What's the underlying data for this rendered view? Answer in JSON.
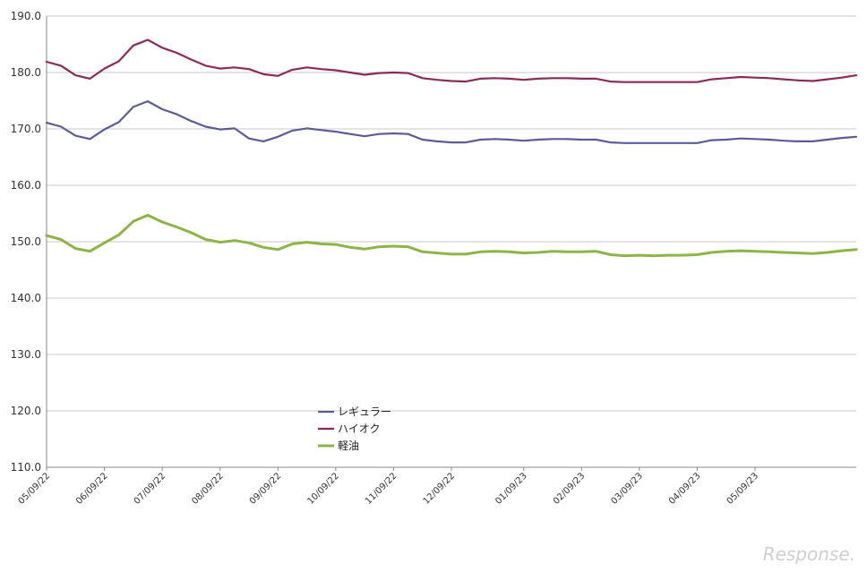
{
  "watermark": "Response.",
  "colors": {
    "regular": "#5b5b9b",
    "high_octane": "#8b2a5a",
    "diesel": "#8db545",
    "grid": "#c8c8c8",
    "axis": "#888888"
  },
  "chart_data": {
    "type": "line",
    "title": "",
    "xlabel": "",
    "ylabel": "",
    "ylim": [
      110,
      190
    ],
    "y_ticks": [
      "110.0",
      "120.0",
      "130.0",
      "140.0",
      "150.0",
      "160.0",
      "170.0",
      "180.0",
      "190.0"
    ],
    "x_ticks": [
      "05/09/22",
      "06/09/22",
      "07/09/22",
      "08/09/22",
      "09/09/22",
      "10/09/22",
      "11/09/22",
      "12/09/22",
      "01/09/23",
      "02/09/23",
      "03/09/23",
      "04/09/23",
      "05/09/23"
    ],
    "x_tick_index": [
      0,
      4,
      8,
      12,
      16,
      20,
      24,
      28,
      33,
      37,
      41,
      45,
      49
    ],
    "grid": "horizontal",
    "legend_position": "center-bottom",
    "series": [
      {
        "name": "レギュラー",
        "color_key": "regular",
        "values": [
          171.1,
          170.4,
          168.8,
          168.2,
          169.9,
          171.2,
          173.9,
          174.9,
          173.5,
          172.6,
          171.4,
          170.4,
          169.9,
          170.1,
          168.3,
          167.8,
          168.6,
          169.7,
          170.1,
          169.8,
          169.5,
          169.1,
          168.7,
          169.1,
          169.2,
          169.1,
          168.1,
          167.8,
          167.6,
          167.6,
          168.1,
          168.2,
          168.1,
          167.9,
          168.1,
          168.2,
          168.2,
          168.1,
          168.1,
          167.6,
          167.5,
          167.5,
          167.5,
          167.5,
          167.5,
          167.5,
          168.0,
          168.1,
          168.3,
          168.2,
          168.1,
          167.9,
          167.8,
          167.8,
          168.1,
          168.4,
          168.6
        ]
      },
      {
        "name": "ハイオク",
        "color_key": "high_octane",
        "values": [
          181.9,
          181.2,
          179.5,
          178.9,
          180.7,
          182.0,
          184.8,
          185.8,
          184.4,
          183.5,
          182.3,
          181.2,
          180.7,
          180.9,
          180.6,
          179.7,
          179.4,
          180.5,
          180.9,
          180.6,
          180.4,
          180.0,
          179.6,
          179.9,
          180.0,
          179.9,
          179.0,
          178.7,
          178.5,
          178.4,
          178.9,
          179.0,
          178.9,
          178.7,
          178.9,
          179.0,
          179.0,
          178.9,
          178.9,
          178.4,
          178.3,
          178.3,
          178.3,
          178.3,
          178.3,
          178.3,
          178.8,
          179.0,
          179.2,
          179.1,
          179.0,
          178.8,
          178.6,
          178.5,
          178.8,
          179.1,
          179.5
        ]
      },
      {
        "name": "軽油",
        "color_key": "diesel",
        "values": [
          151.1,
          150.4,
          148.8,
          148.3,
          149.8,
          151.2,
          153.6,
          154.7,
          153.5,
          152.6,
          151.6,
          150.4,
          149.9,
          150.2,
          149.8,
          149.0,
          148.6,
          149.6,
          149.9,
          149.6,
          149.5,
          149.0,
          148.7,
          149.1,
          149.2,
          149.1,
          148.2,
          148.0,
          147.8,
          147.8,
          148.2,
          148.3,
          148.2,
          148.0,
          148.1,
          148.3,
          148.2,
          148.2,
          148.3,
          147.7,
          147.5,
          147.6,
          147.5,
          147.6,
          147.6,
          147.7,
          148.1,
          148.3,
          148.4,
          148.3,
          148.2,
          148.1,
          148.0,
          147.9,
          148.1,
          148.4,
          148.6
        ]
      }
    ]
  }
}
